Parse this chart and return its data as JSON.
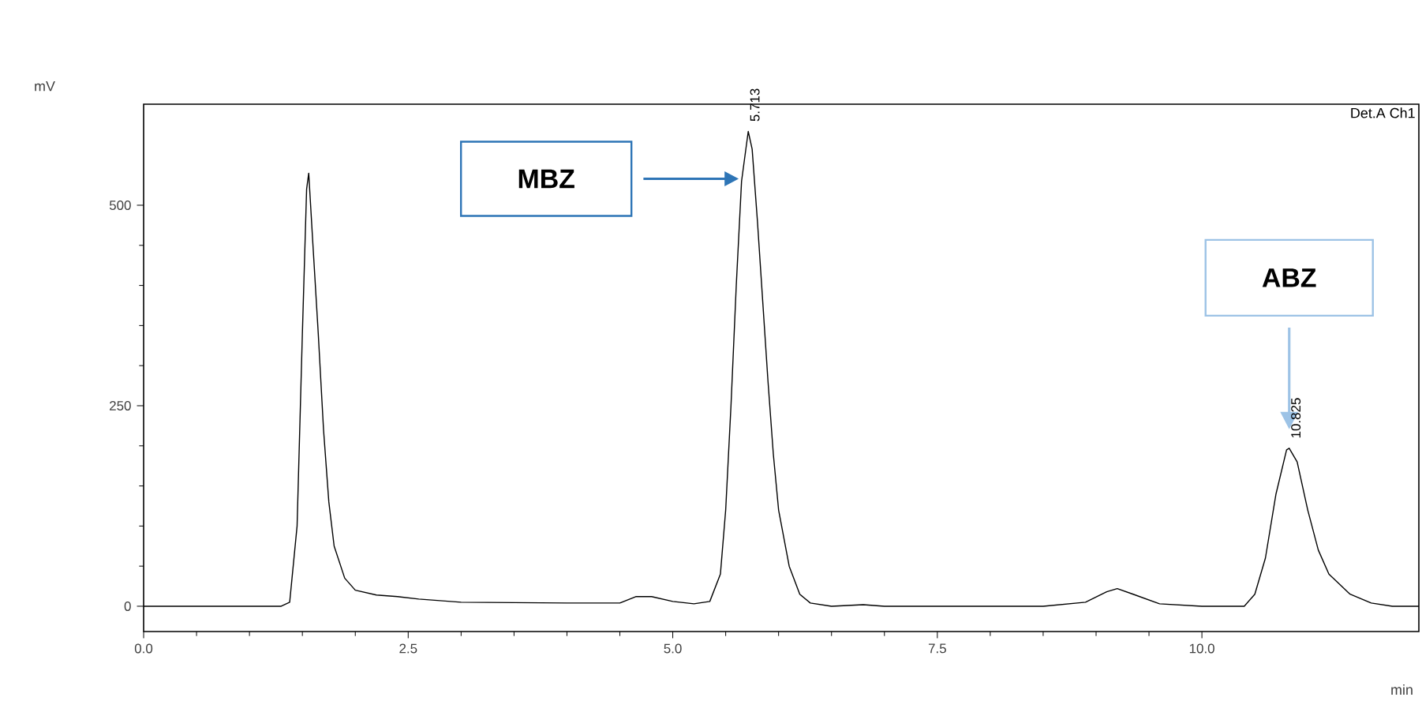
{
  "chart_data": {
    "type": "line",
    "xlabel": "min",
    "ylabel": "mV",
    "xlim": [
      0,
      12.05
    ],
    "ylim": [
      -31.5,
      626
    ],
    "xticks": [
      {
        "value": 0,
        "label": "0.0"
      },
      2.5,
      {
        "value": 5,
        "label": "5.0"
      },
      7.5,
      {
        "value": 10,
        "label": "10.0"
      }
    ],
    "yticks": [
      0,
      250,
      500
    ],
    "grid": false,
    "marker": "none",
    "line_style": "solid",
    "annotations": [
      "Det.A Ch1",
      "MBZ",
      {
        "text": "5.713",
        "x": 5.713,
        "y": 592
      },
      "ABZ",
      {
        "text": "10.825",
        "x": 10.825,
        "y": 197
      }
    ],
    "series": [
      {
        "color": "#000000",
        "x": [
          0,
          1.3,
          1.38,
          1.45,
          1.5,
          1.54,
          1.56,
          1.6,
          1.65,
          1.7,
          1.75,
          1.8,
          1.9,
          2.0,
          2.2,
          2.4,
          2.6,
          3.0,
          4.0,
          4.5,
          4.65,
          4.8,
          5.0,
          5.2,
          5.35,
          5.45,
          5.5,
          5.55,
          5.6,
          5.65,
          5.713,
          5.75,
          5.8,
          5.85,
          5.9,
          5.95,
          6.0,
          6.1,
          6.2,
          6.3,
          6.5,
          6.8,
          7.0,
          8.5,
          8.9,
          9.1,
          9.2,
          9.35,
          9.6,
          10.0,
          10.4,
          10.5,
          10.6,
          10.7,
          10.8,
          10.825,
          10.9,
          11.0,
          11.1,
          11.2,
          11.4,
          11.6,
          11.8,
          12.05
        ],
        "values": [
          0,
          0,
          5,
          100,
          340,
          520,
          540,
          450,
          340,
          220,
          130,
          75,
          35,
          20,
          14,
          12,
          9,
          5,
          4,
          4,
          12,
          12,
          6,
          3,
          6,
          40,
          120,
          250,
          400,
          530,
          592,
          570,
          480,
          380,
          280,
          190,
          120,
          50,
          15,
          4,
          0,
          2,
          0,
          0,
          5,
          18,
          22,
          15,
          3,
          0,
          0,
          15,
          60,
          140,
          195,
          197,
          180,
          120,
          70,
          40,
          15,
          4,
          0,
          0
        ]
      }
    ]
  }
}
